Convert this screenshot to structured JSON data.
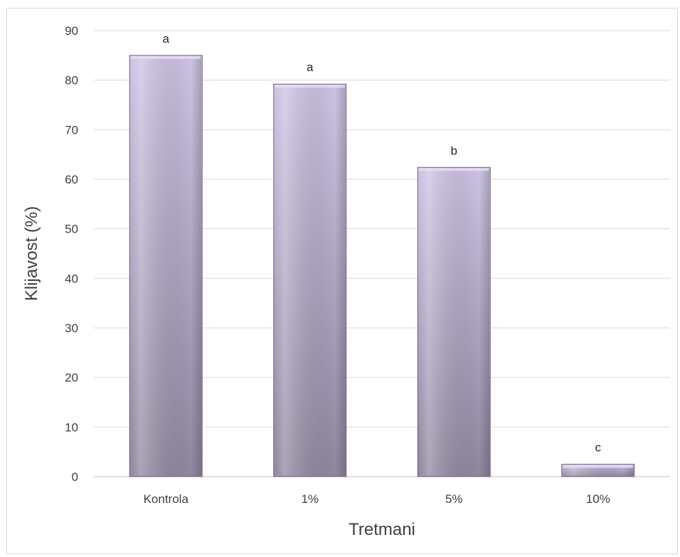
{
  "chart_data": {
    "type": "bar",
    "title": "",
    "xlabel": "Tretmani",
    "ylabel": "Klijavost (%)",
    "categories": [
      "Kontrola",
      "1%",
      "5%",
      "10%"
    ],
    "values": [
      85,
      79.2,
      62.4,
      2.5
    ],
    "bar_labels": [
      "a",
      "a",
      "b",
      "c"
    ],
    "ylim": [
      0,
      90
    ],
    "yticks": [
      0,
      10,
      20,
      30,
      40,
      50,
      60,
      70,
      80,
      90
    ],
    "grid": true,
    "legend": "none",
    "colors": {
      "bar_light": "#c9bedf",
      "bar_dark": "#8c84a0",
      "bar_edge": "#6e6680",
      "gridline": "#d9d9d9"
    }
  }
}
